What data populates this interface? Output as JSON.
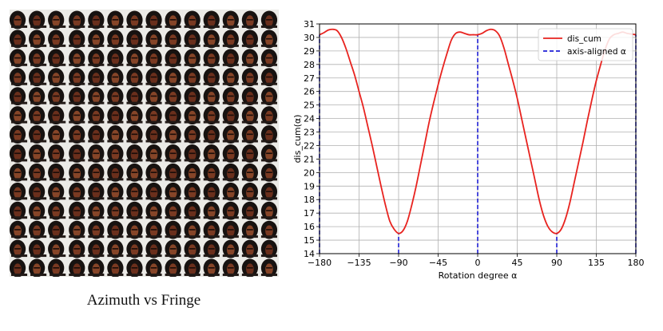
{
  "figure": {
    "left_caption": "Azimuth vs Fringe",
    "image_grid": {
      "rows": 14,
      "cols": 14
    }
  },
  "chart_data": {
    "type": "line",
    "xlabel": "Rotation degree α",
    "ylabel": "dis_cum(α)",
    "xlim": [
      -180,
      180
    ],
    "ylim": [
      14,
      31
    ],
    "xticks": [
      -180,
      -135,
      -90,
      -45,
      0,
      45,
      90,
      135,
      180
    ],
    "yticks": [
      14,
      15,
      16,
      17,
      18,
      19,
      20,
      21,
      22,
      23,
      24,
      25,
      26,
      27,
      28,
      29,
      30,
      31
    ],
    "xtick_labels": [
      "−180",
      "−135",
      "−90",
      "−45",
      "0",
      "45",
      "90",
      "135",
      "180"
    ],
    "grid": true,
    "legend_position": "top-right",
    "series": [
      {
        "name": "dis_cum",
        "color": "#e8231f",
        "style": "solid",
        "x": [
          -180,
          -175,
          -170,
          -165,
          -160,
          -155,
          -150,
          -145,
          -140,
          -135,
          -130,
          -125,
          -120,
          -115,
          -110,
          -105,
          -100,
          -95,
          -90,
          -85,
          -80,
          -75,
          -70,
          -65,
          -60,
          -55,
          -50,
          -45,
          -40,
          -35,
          -30,
          -25,
          -20,
          -15,
          -10,
          -5,
          0,
          5,
          10,
          15,
          20,
          25,
          30,
          35,
          40,
          45,
          50,
          55,
          60,
          65,
          70,
          75,
          80,
          85,
          90,
          95,
          100,
          105,
          110,
          115,
          120,
          125,
          130,
          135,
          140,
          145,
          150,
          155,
          160,
          165,
          170,
          175,
          180
        ],
        "y": [
          30.2,
          30.35,
          30.55,
          30.6,
          30.5,
          30.0,
          29.2,
          28.2,
          27.2,
          26.0,
          24.8,
          23.4,
          22.0,
          20.5,
          19.0,
          17.6,
          16.4,
          15.8,
          15.5,
          15.7,
          16.4,
          17.6,
          19.0,
          20.6,
          22.2,
          23.8,
          25.2,
          26.5,
          27.7,
          28.8,
          29.8,
          30.3,
          30.4,
          30.3,
          30.2,
          30.2,
          30.2,
          30.3,
          30.5,
          30.6,
          30.5,
          30.1,
          29.2,
          28.0,
          26.8,
          25.5,
          24.0,
          22.5,
          21.0,
          19.5,
          18.0,
          16.8,
          16.0,
          15.6,
          15.5,
          15.8,
          16.6,
          17.8,
          19.3,
          20.8,
          22.3,
          23.9,
          25.4,
          26.8,
          28.0,
          29.1,
          29.9,
          30.2,
          30.3,
          30.4,
          30.3,
          30.25,
          30.2
        ]
      },
      {
        "name": "axis-aligned α",
        "color": "#1f1fd6",
        "style": "dashed",
        "vlines": [
          {
            "x": -180,
            "y": 30.2
          },
          {
            "x": -90,
            "y": 15.5
          },
          {
            "x": 0,
            "y": 30.2
          },
          {
            "x": 90,
            "y": 15.5
          },
          {
            "x": 180,
            "y": 30.2
          }
        ]
      }
    ]
  }
}
